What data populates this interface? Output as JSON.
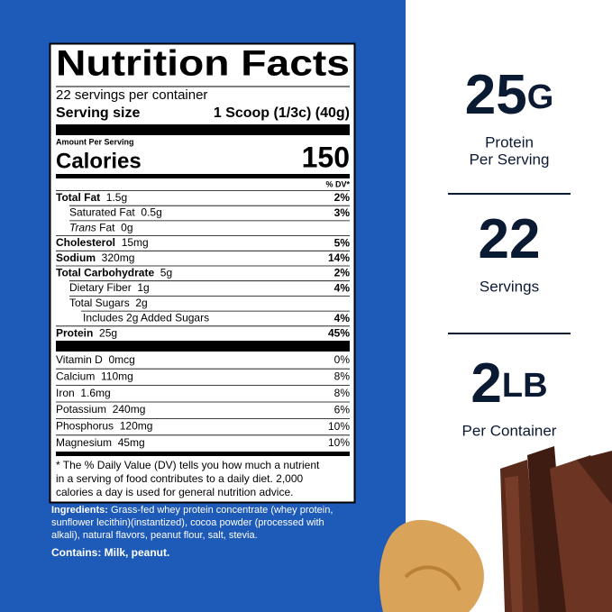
{
  "label": {
    "title": "Nutrition Facts",
    "servings": "22 servings per container",
    "serving_size_label": "Serving size",
    "serving_size": "1 Scoop (1/3c) (40g)",
    "amount_per_serving": "Amount Per Serving",
    "calories_label": "Calories",
    "calories": "150",
    "dv_header": "% DV*",
    "nutrients": [
      {
        "name": "Total Fat",
        "amount": "1.5g",
        "dv": "2%",
        "sub": [
          {
            "name": "Saturated Fat",
            "amount": "0.5g",
            "dv": "3%"
          },
          {
            "italic": "Trans",
            "name": "Fat",
            "amount": "0g"
          }
        ]
      },
      {
        "name": "Cholesterol",
        "amount": "15mg",
        "dv": "5%"
      },
      {
        "name": "Sodium",
        "amount": "320mg",
        "dv": "14%"
      },
      {
        "name": "Total Carbohydrate",
        "amount": "5g",
        "dv": "2%",
        "sub": [
          {
            "name": "Dietary Fiber",
            "amount": "1g",
            "dv": "4%"
          },
          {
            "name": "Total Sugars",
            "amount": "2g",
            "sub": [
              {
                "name": "Includes 2g Added Sugars",
                "dv": "4%"
              }
            ]
          }
        ]
      },
      {
        "name": "Protein",
        "amount": "25g",
        "dv": "45%"
      }
    ],
    "vitamins": [
      {
        "name": "Vitamin D",
        "amount": "0mcg",
        "dv": "0%"
      },
      {
        "name": "Calcium",
        "amount": "110mg",
        "dv": "8%"
      },
      {
        "name": "Iron",
        "amount": "1.6mg",
        "dv": "8%"
      },
      {
        "name": "Potassium",
        "amount": "240mg",
        "dv": "6%"
      },
      {
        "name": "Phosphorus",
        "amount": "120mg",
        "dv": "10%"
      },
      {
        "name": "Magnesium",
        "amount": "45mg",
        "dv": "10%"
      }
    ],
    "footnote": [
      "* The % Daily Value (DV) tells you how much a nutrient",
      "in a serving of food contributes to a daily diet. 2,000",
      "calories a day is used for general nutrition advice."
    ]
  },
  "ingredients": {
    "label": "Ingredients:",
    "lines": [
      "Grass-fed whey protein concentrate (whey protein,",
      "sunflower lecithin)(instantized), cocoa powder (processed with",
      "alkali), natural flavors, peanut flour, salt, stevia."
    ]
  },
  "contains": "Contains: Milk, peanut.",
  "stats": [
    {
      "value": "25",
      "unit": "G",
      "label": [
        "Protein",
        "Per Serving"
      ]
    },
    {
      "value": "22",
      "label": [
        "Servings"
      ]
    },
    {
      "value": "2",
      "unit": "LB",
      "label": [
        "Per Container"
      ]
    }
  ]
}
